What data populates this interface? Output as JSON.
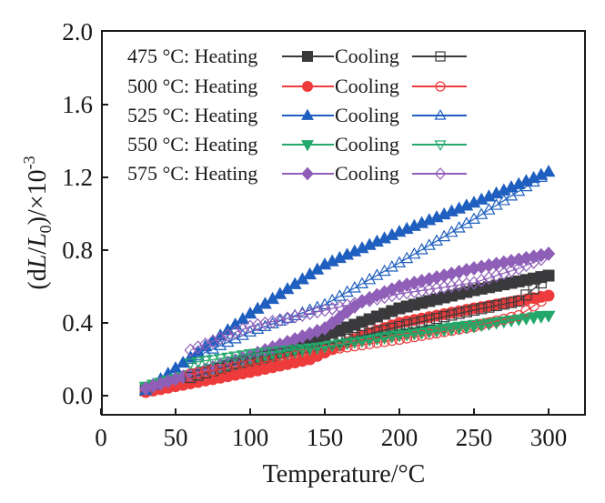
{
  "chart_data": {
    "type": "line",
    "title": "",
    "xlabel": "Temperature/°C",
    "ylabel_parts": [
      "(d",
      "L",
      "/",
      "L",
      "0",
      ")/×10",
      "-3"
    ],
    "ylabel": "(dL/L0)/×10^-3",
    "xlim": [
      0,
      325
    ],
    "ylim": [
      -0.1,
      2.0
    ],
    "x_ticks": [
      0,
      50,
      100,
      150,
      200,
      250,
      300
    ],
    "x_tick_labels": [
      "0",
      "50",
      "100",
      "150",
      "200",
      "250",
      "300"
    ],
    "y_ticks": [
      0.0,
      0.4,
      0.8,
      1.2,
      1.6,
      2.0
    ],
    "y_tick_labels": [
      "0.0",
      "0.4",
      "0.8",
      "1.2",
      "1.6",
      "2.0"
    ],
    "grid": false,
    "legend_position": "top-left",
    "legend_heating_label": "Heating",
    "legend_cooling_label": "Cooling",
    "groups": [
      {
        "label": "475 °C:",
        "color": "#3a3a3c",
        "marker": "square",
        "heating": {
          "x": [
            30,
            100,
            150,
            200,
            250,
            300
          ],
          "y": [
            0.03,
            0.17,
            0.33,
            0.48,
            0.58,
            0.66
          ]
        },
        "cooling": {
          "x": [
            60,
            100,
            150,
            200,
            250,
            280,
            295
          ],
          "y": [
            0.1,
            0.2,
            0.28,
            0.38,
            0.47,
            0.52,
            0.62
          ]
        }
      },
      {
        "label": "500 °C:",
        "color": "#ee3b3b",
        "marker": "circle",
        "heating": {
          "x": [
            30,
            100,
            140,
            175,
            200,
            250,
            300
          ],
          "y": [
            0.02,
            0.13,
            0.2,
            0.33,
            0.4,
            0.48,
            0.55
          ]
        },
        "cooling": {
          "x": [
            60,
            100,
            150,
            200,
            250,
            280,
            295
          ],
          "y": [
            0.12,
            0.17,
            0.25,
            0.31,
            0.38,
            0.44,
            0.52
          ]
        }
      },
      {
        "label": "525 °C:",
        "color": "#1f5fbf",
        "marker": "triangle-up",
        "heating": {
          "x": [
            30,
            100,
            150,
            200,
            250,
            300
          ],
          "y": [
            0.03,
            0.45,
            0.72,
            0.9,
            1.06,
            1.23
          ]
        },
        "cooling": {
          "x": [
            60,
            100,
            150,
            200,
            250,
            295
          ],
          "y": [
            0.2,
            0.35,
            0.5,
            0.73,
            0.97,
            1.2
          ]
        }
      },
      {
        "label": "550 °C:",
        "color": "#22a86a",
        "marker": "triangle-down",
        "heating": {
          "x": [
            30,
            100,
            150,
            200,
            250,
            300
          ],
          "y": [
            0.05,
            0.2,
            0.27,
            0.34,
            0.39,
            0.44
          ]
        },
        "cooling": {
          "x": [
            60,
            100,
            150,
            200,
            250,
            295
          ],
          "y": [
            0.18,
            0.23,
            0.27,
            0.33,
            0.38,
            0.44
          ]
        }
      },
      {
        "label": "575 °C:",
        "color": "#8f5fb8",
        "marker": "diamond",
        "heating": {
          "x": [
            30,
            100,
            150,
            175,
            200,
            250,
            300
          ],
          "y": [
            0.04,
            0.22,
            0.37,
            0.52,
            0.6,
            0.7,
            0.78
          ]
        },
        "cooling": {
          "x": [
            60,
            100,
            150,
            200,
            250,
            280,
            295
          ],
          "y": [
            0.25,
            0.38,
            0.47,
            0.56,
            0.62,
            0.7,
            0.75
          ]
        }
      }
    ]
  }
}
